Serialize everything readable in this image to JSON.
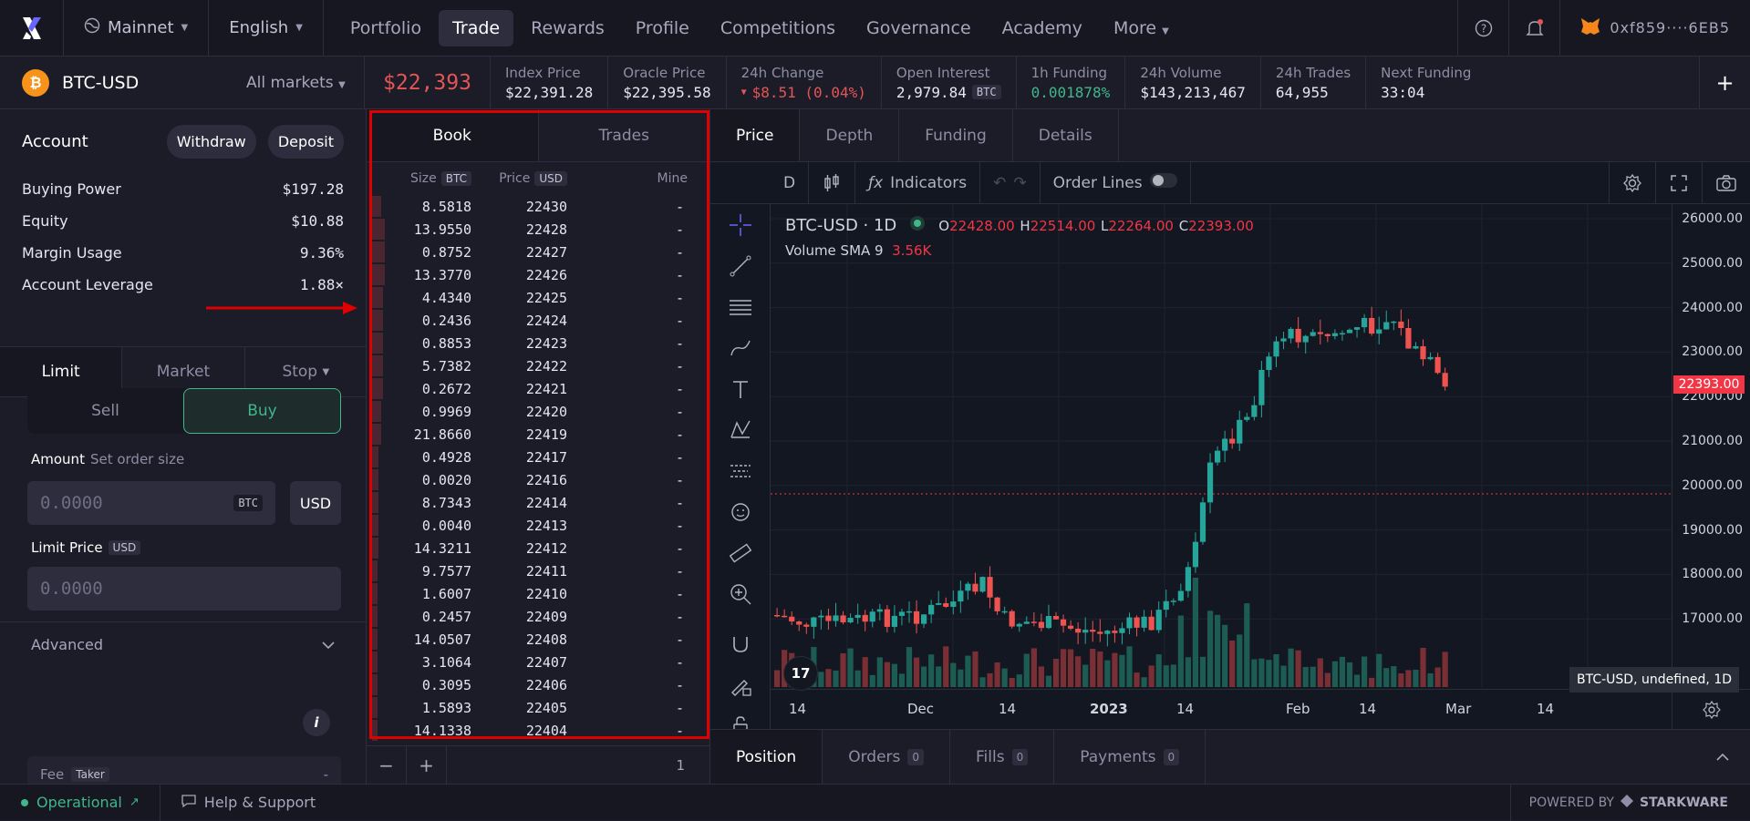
{
  "nav": {
    "network": "Mainnet",
    "language": "English",
    "links": [
      "Portfolio",
      "Trade",
      "Rewards",
      "Profile",
      "Competitions",
      "Governance",
      "Academy",
      "More"
    ],
    "active_link": "Trade",
    "wallet": "0xf859····6EB5"
  },
  "market": {
    "symbol": "BTC-USD",
    "all_markets": "All markets",
    "last_price": "$22,393",
    "stats": [
      {
        "label": "Index Price",
        "value": "$22,391.28"
      },
      {
        "label": "Oracle Price",
        "value": "$22,395.58"
      },
      {
        "label": "24h Change",
        "value": "$8.51 (0.04%)"
      },
      {
        "label": "Open Interest",
        "value": "2,979.84",
        "badge": "BTC"
      },
      {
        "label": "1h Funding",
        "value": "0.001878%"
      },
      {
        "label": "24h Volume",
        "value": "$143,213,467"
      },
      {
        "label": "24h Trades",
        "value": "64,955"
      },
      {
        "label": "Next Funding",
        "value": "33:04"
      }
    ],
    "colors": {
      "down": "#e45555",
      "up": "#3fb68b"
    }
  },
  "account": {
    "title": "Account",
    "withdraw": "Withdraw",
    "deposit": "Deposit",
    "rows": [
      {
        "k": "Buying Power",
        "v": "$197.28"
      },
      {
        "k": "Equity",
        "v": "$10.88"
      },
      {
        "k": "Margin Usage",
        "v": "9.36%"
      },
      {
        "k": "Account Leverage",
        "v": "1.88×"
      }
    ]
  },
  "order": {
    "tabs": [
      "Limit",
      "Market",
      "Stop"
    ],
    "sell": "Sell",
    "buy": "Buy",
    "amount_label": "Amount",
    "amount_hint": "Set order size",
    "amount_placeholder": "0.0000",
    "amount_unit": "BTC",
    "usd_toggle": "USD",
    "limit_label": "Limit Price",
    "limit_unit": "USD",
    "limit_placeholder": "0.0000",
    "advanced": "Advanced",
    "fee_label": "Fee",
    "fee_badge": "Taker",
    "fee_value": "-"
  },
  "orderbook": {
    "tabs": [
      "Book",
      "Trades"
    ],
    "headers": {
      "size": "Size",
      "size_unit": "BTC",
      "price": "Price",
      "price_unit": "USD",
      "mine": "Mine"
    },
    "rows": [
      {
        "size": "8.5818",
        "price": "22430",
        "mine": "-",
        "depth": 0.4
      },
      {
        "size": "13.9550",
        "price": "22428",
        "mine": "-",
        "depth": 0.6
      },
      {
        "size": "0.8752",
        "price": "22427",
        "mine": "-",
        "depth": 0.6
      },
      {
        "size": "13.3770",
        "price": "22426",
        "mine": "-",
        "depth": 0.6
      },
      {
        "size": "4.4340",
        "price": "22425",
        "mine": "-",
        "depth": 0.5
      },
      {
        "size": "0.2436",
        "price": "22424",
        "mine": "-",
        "depth": 0.5
      },
      {
        "size": "0.8853",
        "price": "22423",
        "mine": "-",
        "depth": 0.5
      },
      {
        "size": "5.7382",
        "price": "22422",
        "mine": "-",
        "depth": 0.5
      },
      {
        "size": "0.2672",
        "price": "22421",
        "mine": "-",
        "depth": 0.5
      },
      {
        "size": "0.9969",
        "price": "22420",
        "mine": "-",
        "depth": 0.4
      },
      {
        "size": "21.8660",
        "price": "22419",
        "mine": "-",
        "depth": 0.4
      },
      {
        "size": "0.4928",
        "price": "22417",
        "mine": "-",
        "depth": 0.3
      },
      {
        "size": "0.0020",
        "price": "22416",
        "mine": "-",
        "depth": 0.3
      },
      {
        "size": "8.7343",
        "price": "22414",
        "mine": "-",
        "depth": 0.3
      },
      {
        "size": "0.0040",
        "price": "22413",
        "mine": "-",
        "depth": 0.3
      },
      {
        "size": "14.3211",
        "price": "22412",
        "mine": "-",
        "depth": 0.3
      },
      {
        "size": "9.7577",
        "price": "22411",
        "mine": "-",
        "depth": 0.2
      },
      {
        "size": "1.6007",
        "price": "22410",
        "mine": "-",
        "depth": 0.2
      },
      {
        "size": "0.2457",
        "price": "22409",
        "mine": "-",
        "depth": 0.2
      },
      {
        "size": "14.0507",
        "price": "22408",
        "mine": "-",
        "depth": 0.2
      },
      {
        "size": "3.1064",
        "price": "22407",
        "mine": "-",
        "depth": 0.1
      },
      {
        "size": "0.3095",
        "price": "22406",
        "mine": "-",
        "depth": 0.1
      },
      {
        "size": "1.5893",
        "price": "22405",
        "mine": "-",
        "depth": 0.1
      },
      {
        "size": "14.1338",
        "price": "22404",
        "mine": "-",
        "depth": 0.1
      }
    ],
    "footer_minus": "−",
    "footer_plus": "+",
    "footer_grouping": "1"
  },
  "chart": {
    "tabs": [
      "Price",
      "Depth",
      "Funding",
      "Details"
    ],
    "interval_btn": "D",
    "indicators": "Indicators",
    "order_lines": "Order Lines",
    "legend_symbol": "BTC-USD · 1D",
    "ohlc": {
      "o_label": "O",
      "o": "22428.00",
      "h_label": "H",
      "h": "22514.00",
      "l_label": "L",
      "l": "22264.00",
      "c_label": "C",
      "c": "22393.00"
    },
    "volume_label": "Volume SMA 9",
    "volume_value": "3.56K",
    "price_labels": [
      "26000.00",
      "25000.00",
      "24000.00",
      "23000.00",
      "22000.00",
      "21000.00",
      "20000.00",
      "19000.00",
      "18000.00",
      "17000.00"
    ],
    "last_price_tag": "22393.00",
    "time_labels": [
      "14",
      "Dec",
      "14",
      "2023",
      "14",
      "Feb",
      "14",
      "Mar",
      "14"
    ],
    "tooltip": "BTC-USD, undefined, 1D",
    "tv_logo": "17"
  },
  "bottom": {
    "tabs": [
      {
        "label": "Position",
        "count": ""
      },
      {
        "label": "Orders",
        "count": "0"
      },
      {
        "label": "Fills",
        "count": "0"
      },
      {
        "label": "Payments",
        "count": "0"
      }
    ]
  },
  "status": {
    "operational": "Operational",
    "support": "Help & Support",
    "powered": "POWERED BY",
    "brand": "STARKWARE"
  }
}
